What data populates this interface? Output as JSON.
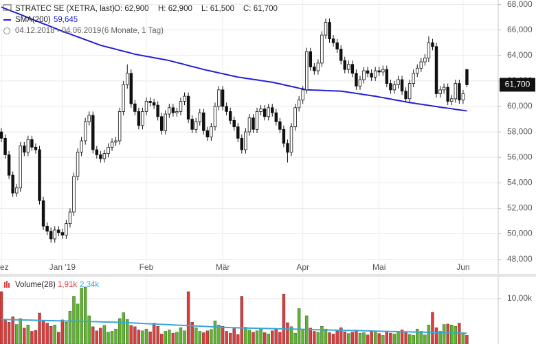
{
  "chart_data": {
    "type": "candlestick",
    "title": "STRATEC SE (XETRA, last)",
    "ohlc_labels": [
      "O: 62,900",
      "H: 62,900",
      "L: 61,500",
      "C: 61,700"
    ],
    "period": "04.12.2018 - 04.06.2019",
    "period_note": "(6 Monate, 1 Tag)",
    "categories": [
      "Dez",
      null,
      null,
      null,
      null,
      null,
      null,
      null,
      null,
      null,
      null,
      null,
      null,
      null,
      null,
      null,
      "Jan '19",
      null,
      null,
      null,
      null,
      null,
      null,
      null,
      null,
      null,
      null,
      null,
      null,
      null,
      null,
      null,
      null,
      null,
      null,
      null,
      null,
      null,
      "Feb",
      null,
      null,
      null,
      null,
      null,
      null,
      null,
      null,
      null,
      null,
      null,
      null,
      null,
      null,
      null,
      null,
      null,
      null,
      null,
      "Mär",
      null,
      null,
      null,
      null,
      null,
      null,
      null,
      null,
      null,
      null,
      null,
      null,
      null,
      null,
      null,
      null,
      null,
      null,
      null,
      null,
      "Apr",
      null,
      null,
      null,
      null,
      null,
      null,
      null,
      null,
      null,
      null,
      null,
      null,
      null,
      null,
      null,
      null,
      null,
      null,
      null,
      "Mai",
      null,
      null,
      null,
      null,
      null,
      null,
      null,
      null,
      null,
      null,
      null,
      null,
      null,
      null,
      null,
      null,
      null,
      null,
      null,
      null,
      null,
      "Jun",
      null
    ],
    "open": [
      58.0,
      57.5,
      56.2,
      54.6,
      53.2,
      53.6,
      56.9,
      56.4,
      57.4,
      56.8,
      56.6,
      52.6,
      50.6,
      50.2,
      49.6,
      50.3,
      50.1,
      49.9,
      50.8,
      51.7,
      54.5,
      56.4,
      57.3,
      58.8,
      59.3,
      56.6,
      56.2,
      55.9,
      56.3,
      56.8,
      57.2,
      57.3,
      59.6,
      61.7,
      62.6,
      60.2,
      59.6,
      58.5,
      59.6,
      60.4,
      60.3,
      60.1,
      59.2,
      58.1,
      59.4,
      59.9,
      59.5,
      59.6,
      60.4,
      60.8,
      59.0,
      58.2,
      58.8,
      59.5,
      58.1,
      57.6,
      58.4,
      60.0,
      61.3,
      60.0,
      59.6,
      58.9,
      58.4,
      57.5,
      56.6,
      58.0,
      59.1,
      58.2,
      59.6,
      59.8,
      59.2,
      59.9,
      59.5,
      58.8,
      58.2,
      57.1,
      56.4,
      58.4,
      59.9,
      60.5,
      61.3,
      64.3,
      63.1,
      62.8,
      63.4,
      65.6,
      66.6,
      65.3,
      65.0,
      64.5,
      63.6,
      62.9,
      63.3,
      62.6,
      61.6,
      62.1,
      62.8,
      62.6,
      62.3,
      62.8,
      62.7,
      62.9,
      61.8,
      61.3,
      61.7,
      62.1,
      61.2,
      60.6,
      61.8,
      62.6,
      63.0,
      63.5,
      63.8,
      65.0,
      64.7,
      61.0,
      61.3,
      61.5,
      60.4,
      60.6,
      61.8,
      60.5,
      62.9
    ],
    "high": [
      58.3,
      57.8,
      56.5,
      54.9,
      53.9,
      57.2,
      57.2,
      57.7,
      57.7,
      57.1,
      56.9,
      52.9,
      50.9,
      50.5,
      50.6,
      50.6,
      50.4,
      51.1,
      52.0,
      54.8,
      56.7,
      57.6,
      59.1,
      59.6,
      59.6,
      56.9,
      56.5,
      56.6,
      57.1,
      57.5,
      57.6,
      59.9,
      62.0,
      63.3,
      62.9,
      60.5,
      59.9,
      59.9,
      60.7,
      60.7,
      60.6,
      60.4,
      59.5,
      59.7,
      60.2,
      60.2,
      59.9,
      60.7,
      61.1,
      61.1,
      59.3,
      59.1,
      59.8,
      59.8,
      58.4,
      58.7,
      60.3,
      61.6,
      61.6,
      60.3,
      59.9,
      59.2,
      58.7,
      57.8,
      58.3,
      59.4,
      59.4,
      59.9,
      60.1,
      60.1,
      60.2,
      60.2,
      59.8,
      59.1,
      58.5,
      57.4,
      58.7,
      60.2,
      60.8,
      61.6,
      64.6,
      64.6,
      63.4,
      63.7,
      65.9,
      66.9,
      66.9,
      65.6,
      65.3,
      64.8,
      63.9,
      63.6,
      63.6,
      62.9,
      62.4,
      63.1,
      63.1,
      62.9,
      63.1,
      63.1,
      63.2,
      63.2,
      62.1,
      62.0,
      62.4,
      62.4,
      61.5,
      62.1,
      62.9,
      63.3,
      63.8,
      64.1,
      65.5,
      65.3,
      65.0,
      61.6,
      61.8,
      61.8,
      60.9,
      62.1,
      62.1,
      61.3,
      62.9
    ],
    "low": [
      57.2,
      55.9,
      54.3,
      52.9,
      52.9,
      53.3,
      56.1,
      56.1,
      56.5,
      56.3,
      52.3,
      50.3,
      49.9,
      49.3,
      49.3,
      49.8,
      49.6,
      49.6,
      50.5,
      51.4,
      54.2,
      56.1,
      57.0,
      58.5,
      56.3,
      55.9,
      55.6,
      55.6,
      56.0,
      56.5,
      56.9,
      57.0,
      59.3,
      61.4,
      59.9,
      59.3,
      58.2,
      58.2,
      59.3,
      60.0,
      59.8,
      58.9,
      57.8,
      57.8,
      59.1,
      59.2,
      59.2,
      59.3,
      60.1,
      58.7,
      57.9,
      57.9,
      58.5,
      57.8,
      57.3,
      57.3,
      58.1,
      59.7,
      59.7,
      59.3,
      58.6,
      58.1,
      57.2,
      56.3,
      56.3,
      57.7,
      57.9,
      57.9,
      59.3,
      58.9,
      58.9,
      59.2,
      58.5,
      57.9,
      56.8,
      55.6,
      56.1,
      58.1,
      59.6,
      60.2,
      61.0,
      62.8,
      62.5,
      62.5,
      63.1,
      65.3,
      65.0,
      64.7,
      64.2,
      63.3,
      62.6,
      62.6,
      62.3,
      61.3,
      61.3,
      61.8,
      62.3,
      62.0,
      62.0,
      62.4,
      62.4,
      61.5,
      61.0,
      61.0,
      61.4,
      60.9,
      60.3,
      60.3,
      61.5,
      62.3,
      62.7,
      63.2,
      63.5,
      64.4,
      60.7,
      60.7,
      61.0,
      60.1,
      60.1,
      60.3,
      60.2,
      60.2,
      61.5
    ],
    "close": [
      57.5,
      56.2,
      54.6,
      53.2,
      53.6,
      56.9,
      56.4,
      57.4,
      56.8,
      56.6,
      52.6,
      50.6,
      50.2,
      49.6,
      50.3,
      50.1,
      49.9,
      50.8,
      51.7,
      54.5,
      56.4,
      57.3,
      58.8,
      59.3,
      56.6,
      56.2,
      55.9,
      56.3,
      56.8,
      57.2,
      57.3,
      59.6,
      61.7,
      62.6,
      60.2,
      59.6,
      58.5,
      59.6,
      60.4,
      60.3,
      60.1,
      59.2,
      58.1,
      59.4,
      59.9,
      59.5,
      59.6,
      60.4,
      60.8,
      59.0,
      58.2,
      58.8,
      59.5,
      58.1,
      57.6,
      58.4,
      60.0,
      61.3,
      60.0,
      59.6,
      58.9,
      58.4,
      57.5,
      56.6,
      58.0,
      59.1,
      58.2,
      59.6,
      59.8,
      59.2,
      59.9,
      59.5,
      58.8,
      58.2,
      57.1,
      56.4,
      58.4,
      59.9,
      60.5,
      61.3,
      64.3,
      63.1,
      62.8,
      63.4,
      65.6,
      66.6,
      65.3,
      65.0,
      64.5,
      63.6,
      62.9,
      63.3,
      62.6,
      61.6,
      62.1,
      62.8,
      62.6,
      62.3,
      62.8,
      62.7,
      62.9,
      61.8,
      61.3,
      61.7,
      62.1,
      61.2,
      60.6,
      61.8,
      62.6,
      63.0,
      63.5,
      63.8,
      65.0,
      64.7,
      61.0,
      61.3,
      61.5,
      60.4,
      60.6,
      61.8,
      60.5,
      61.0,
      61.7
    ],
    "up_color": "#ffffff",
    "down_color": "#111111",
    "last_price": {
      "value": 61.7,
      "label": "61,700"
    },
    "ylim": [
      46.9,
      68.3
    ],
    "yticks": [
      {
        "value": 48,
        "label": "48,000"
      },
      {
        "value": 50,
        "label": "50,000"
      },
      {
        "value": 52,
        "label": "52,000"
      },
      {
        "value": 54,
        "label": "54,000"
      },
      {
        "value": 56,
        "label": "56,000"
      },
      {
        "value": 58,
        "label": "58,000"
      },
      {
        "value": 60,
        "label": "60,000"
      },
      {
        "value": 62,
        "label": "62,000"
      },
      {
        "value": 64,
        "label": "64,000"
      },
      {
        "value": 66,
        "label": "66,000"
      },
      {
        "value": 68,
        "label": "68,000"
      }
    ],
    "grid": true,
    "series": [
      {
        "name": "SMA(200)",
        "color": "#2020d8",
        "last_label": "59,645",
        "values": [
          67.8,
          67.68,
          67.56,
          67.44,
          67.33,
          67.21,
          67.09,
          66.97,
          66.85,
          66.73,
          66.61,
          66.49,
          66.38,
          66.26,
          66.14,
          66.02,
          65.9,
          65.79,
          65.68,
          65.57,
          65.46,
          65.35,
          65.24,
          65.13,
          65.02,
          64.91,
          64.8,
          64.72,
          64.64,
          64.57,
          64.49,
          64.41,
          64.33,
          64.26,
          64.18,
          64.1,
          64.04,
          63.99,
          63.93,
          63.88,
          63.82,
          63.77,
          63.71,
          63.66,
          63.6,
          63.52,
          63.44,
          63.37,
          63.29,
          63.21,
          63.13,
          63.06,
          62.98,
          62.9,
          62.83,
          62.77,
          62.7,
          62.63,
          62.57,
          62.5,
          62.43,
          62.37,
          62.3,
          62.26,
          62.21,
          62.17,
          62.12,
          62.08,
          62.03,
          61.99,
          61.94,
          61.9,
          61.83,
          61.77,
          61.7,
          61.63,
          61.57,
          61.5,
          61.43,
          61.37,
          61.3,
          61.29,
          61.28,
          61.27,
          61.26,
          61.24,
          61.23,
          61.22,
          61.21,
          61.2,
          61.16,
          61.11,
          61.07,
          61.02,
          60.98,
          60.93,
          60.89,
          60.84,
          60.8,
          60.74,
          60.69,
          60.63,
          60.58,
          60.52,
          60.47,
          60.41,
          60.36,
          60.3,
          60.26,
          60.21,
          60.17,
          60.12,
          60.08,
          60.03,
          59.99,
          59.94,
          59.9,
          59.86,
          59.82,
          59.77,
          59.73,
          59.69,
          59.645
        ]
      }
    ],
    "volume": {
      "name": "Volume(28)",
      "last_label": "1,91k",
      "up_color": "#5cb82a",
      "down_color": "#e03c3c",
      "ylim": [
        0,
        14500
      ],
      "yticks": [
        {
          "value": 10000,
          "label": "10,00k"
        }
      ],
      "values": [
        11500,
        5200,
        4800,
        6000,
        4300,
        5600,
        3500,
        4200,
        2800,
        3000,
        6800,
        5200,
        4600,
        3900,
        4200,
        2600,
        5300,
        4800,
        7200,
        10500,
        8800,
        12300,
        12500,
        6200,
        3800,
        2900,
        3500,
        4100,
        2600,
        2800,
        3300,
        5600,
        6900,
        5400,
        4100,
        3800,
        3100,
        2900,
        3300,
        2700,
        4600,
        3900,
        2200,
        2800,
        3100,
        2400,
        2600,
        3600,
        2900,
        11500,
        4800,
        3600,
        2800,
        2500,
        2900,
        3200,
        5100,
        4200,
        3900,
        2800,
        2400,
        3400,
        2100,
        10500,
        3700,
        3100,
        2600,
        2900,
        3300,
        2500,
        2200,
        2900,
        3400,
        2600,
        11000,
        4700,
        3800,
        2400,
        7800,
        3100,
        6200,
        3500,
        2800,
        2600,
        3900,
        3300,
        2500,
        2200,
        2900,
        3600,
        2700,
        2300,
        2600,
        3100,
        2400,
        2500,
        2000,
        2800,
        2600,
        2300,
        1900,
        2700,
        2400,
        2200,
        2600,
        3100,
        2500,
        2100,
        1900,
        3300,
        2800,
        2000,
        4200,
        7000,
        3600,
        2800,
        4300,
        4400,
        4200,
        3900,
        4600,
        2500,
        1910
      ],
      "sma": {
        "color": "#3aa6d8",
        "last_label": "2,34k",
        "values": [
          5400,
          5380,
          5360,
          5340,
          5320,
          5300,
          5280,
          5260,
          5240,
          5220,
          5200,
          5180,
          5160,
          5140,
          5120,
          5100,
          5080,
          5060,
          5040,
          5020,
          5000,
          4980,
          4960,
          4940,
          4920,
          4900,
          4880,
          4860,
          4840,
          4820,
          4800,
          4760,
          4720,
          4680,
          4640,
          4600,
          4560,
          4520,
          4480,
          4440,
          4400,
          4360,
          4320,
          4280,
          4240,
          4200,
          4160,
          4120,
          4080,
          4040,
          4000,
          3960,
          3920,
          3880,
          3840,
          3800,
          3760,
          3720,
          3680,
          3640,
          3600,
          3580,
          3560,
          3540,
          3520,
          3500,
          3480,
          3460,
          3440,
          3420,
          3400,
          3380,
          3360,
          3340,
          3320,
          3300,
          3280,
          3260,
          3240,
          3220,
          3200,
          3180,
          3160,
          3140,
          3120,
          3100,
          3080,
          3060,
          3040,
          3020,
          3000,
          2980,
          2960,
          2940,
          2920,
          2900,
          2880,
          2860,
          2840,
          2820,
          2800,
          2780,
          2760,
          2740,
          2720,
          2700,
          2680,
          2660,
          2640,
          2620,
          2600,
          2580,
          2560,
          2540,
          2520,
          2500,
          2480,
          2460,
          2440,
          2420,
          2400,
          2380,
          2340
        ]
      }
    }
  }
}
